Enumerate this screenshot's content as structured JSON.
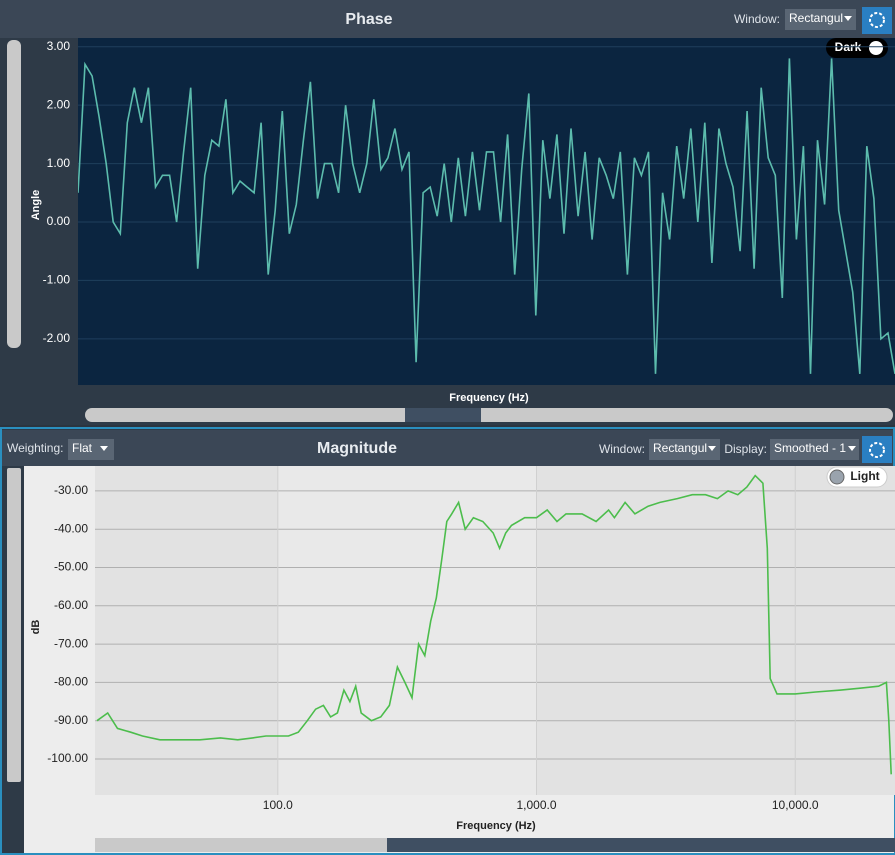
{
  "controls": {
    "phase": {
      "window_label": "Window:",
      "window_value": "Rectangul",
      "theme": "Dark"
    },
    "magnitude": {
      "weighting_label": "Weighting:",
      "weighting_value": "Flat",
      "window_label": "Window:",
      "window_value": "Rectangul",
      "display_label": "Display:",
      "display_value": "Smoothed - 1",
      "theme": "Light"
    }
  },
  "chart_data": [
    {
      "type": "line",
      "title": "Phase",
      "x_label": "Frequency (Hz)",
      "y_label": "Angle",
      "color": "#5cbcad",
      "grid": true,
      "ylim": [
        -2.79,
        3.15
      ],
      "yticks": [
        {
          "value": 3,
          "label": "3.00"
        },
        {
          "value": 2,
          "label": "2.00"
        },
        {
          "value": 1,
          "label": "1.00"
        },
        {
          "value": 0,
          "label": "0.00"
        },
        {
          "value": -1,
          "label": "-1.00"
        },
        {
          "value": -2,
          "label": "-2.00"
        }
      ],
      "values": [
        0.5,
        2.7,
        2.5,
        1.8,
        1.0,
        0.0,
        -0.2,
        1.7,
        2.3,
        1.7,
        2.3,
        0.6,
        0.8,
        0.8,
        0.0,
        1.2,
        2.3,
        -0.8,
        0.8,
        1.4,
        1.3,
        2.1,
        0.5,
        0.7,
        0.6,
        0.5,
        1.7,
        -0.9,
        0.2,
        1.9,
        -0.2,
        0.3,
        1.4,
        2.4,
        0.4,
        1.0,
        1.0,
        0.5,
        2.0,
        1.0,
        0.5,
        1.0,
        2.1,
        0.9,
        1.1,
        1.6,
        0.9,
        1.2,
        -2.4,
        0.5,
        0.6,
        0.1,
        1.0,
        0.0,
        1.1,
        0.1,
        1.2,
        0.2,
        1.2,
        1.2,
        0.0,
        1.5,
        -0.9,
        0.9,
        2.2,
        -1.6,
        1.4,
        0.4,
        1.5,
        -0.2,
        1.6,
        0.1,
        1.2,
        -0.3,
        1.1,
        0.8,
        0.4,
        1.2,
        -0.9,
        1.1,
        0.8,
        1.2,
        -2.6,
        0.5,
        -0.3,
        1.3,
        0.4,
        1.6,
        0.0,
        1.7,
        -0.7,
        1.6,
        1.0,
        0.6,
        -0.5,
        1.9,
        -0.8,
        2.3,
        1.1,
        0.8,
        -1.3,
        2.8,
        -0.3,
        1.3,
        -2.6,
        1.4,
        0.3,
        2.8,
        0.2,
        -0.5,
        -1.2,
        -2.6,
        1.3,
        0.4,
        -2.0,
        -1.9,
        -2.6
      ]
    },
    {
      "type": "line",
      "title": "Magnitude",
      "x_label": "Frequency (Hz)",
      "y_label": "dB",
      "color": "#4cbd4c",
      "grid": true,
      "xscale": "log",
      "xlim": [
        19.65,
        24300
      ],
      "xticks": [
        {
          "value": 100,
          "label": "100.0"
        },
        {
          "value": 1000,
          "label": "1,000.0"
        },
        {
          "value": 10000,
          "label": "10,000.0"
        }
      ],
      "ylim": [
        -109.4,
        -23.5
      ],
      "yticks": [
        {
          "value": -30,
          "label": "-30.00"
        },
        {
          "value": -40,
          "label": "-40.00"
        },
        {
          "value": -50,
          "label": "-50.00"
        },
        {
          "value": -60,
          "label": "-60.00"
        },
        {
          "value": -70,
          "label": "-70.00"
        },
        {
          "value": -80,
          "label": "-80.00"
        },
        {
          "value": -90,
          "label": "-90.00"
        },
        {
          "value": -100,
          "label": "-100.00"
        }
      ],
      "x": [
        20,
        22,
        24,
        27,
        30,
        35,
        40,
        50,
        60,
        70,
        80,
        90,
        100,
        110,
        120,
        130,
        140,
        150,
        160,
        170,
        180,
        190,
        200,
        210,
        230,
        250,
        270,
        290,
        310,
        330,
        350,
        370,
        390,
        410,
        430,
        450,
        470,
        500,
        530,
        570,
        620,
        680,
        720,
        760,
        800,
        900,
        1000,
        1100,
        1200,
        1300,
        1500,
        1700,
        1900,
        2000,
        2200,
        2400,
        2700,
        3000,
        3500,
        4000,
        4500,
        5000,
        5500,
        6000,
        6500,
        7000,
        7500,
        7800,
        8000,
        8500,
        9000,
        10000,
        12000,
        15000,
        18000,
        21000,
        22500,
        23000,
        23500
      ],
      "values": [
        -90,
        -88,
        -92,
        -93,
        -94,
        -95,
        -95,
        -95,
        -94.5,
        -95,
        -94.5,
        -94,
        -94,
        -94,
        -93,
        -90,
        -87,
        -86,
        -89,
        -88,
        -82,
        -85,
        -81,
        -88,
        -90,
        -89,
        -86,
        -76,
        -80,
        -84,
        -70,
        -73,
        -64,
        -58,
        -48,
        -38,
        -36,
        -33,
        -40,
        -37,
        -38,
        -41,
        -45,
        -41,
        -39,
        -37,
        -37,
        -35,
        -38,
        -36,
        -36,
        -38,
        -35,
        -37,
        -33,
        -36,
        -34,
        -33,
        -32,
        -31,
        -31,
        -32,
        -30,
        -31,
        -29,
        -26,
        -28,
        -45,
        -79,
        -83,
        -83,
        -83,
        -82.5,
        -82,
        -81.5,
        -81,
        -80,
        -90,
        -104
      ]
    }
  ]
}
